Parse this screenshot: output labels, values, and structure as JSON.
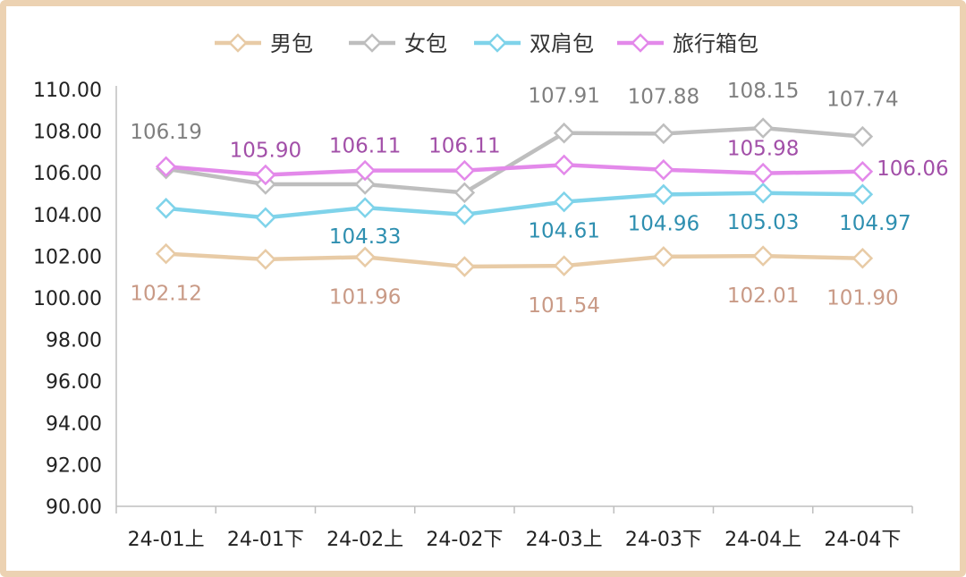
{
  "chart_data": {
    "type": "line",
    "title": "",
    "xlabel": "",
    "ylabel": "",
    "categories": [
      "24-01上",
      "24-01下",
      "24-02上",
      "24-02下",
      "24-03上",
      "24-03下",
      "24-04上",
      "24-04下"
    ],
    "ylim": [
      90,
      110
    ],
    "yticks": [
      "90.00",
      "92.00",
      "94.00",
      "96.00",
      "98.00",
      "100.00",
      "102.00",
      "104.00",
      "106.00",
      "108.00",
      "110.00"
    ],
    "legend_position": "top",
    "grid": false,
    "series": [
      {
        "name": "男包",
        "color": "#e8cba6",
        "label_color": "#c99a86",
        "values": [
          102.12,
          101.85,
          101.96,
          101.5,
          101.54,
          101.98,
          102.01,
          101.9
        ],
        "labels": [
          "102.12",
          "",
          "101.96",
          "",
          "101.54",
          "",
          "102.01",
          "101.90"
        ]
      },
      {
        "name": "女包",
        "color": "#bebebe",
        "label_color": "#7f7f7f",
        "values": [
          106.19,
          105.45,
          105.45,
          105.05,
          107.91,
          107.88,
          108.15,
          107.74
        ],
        "labels": [
          "106.19",
          "",
          "",
          "",
          "107.91",
          "107.88",
          "108.15",
          "107.74"
        ]
      },
      {
        "name": "双肩包",
        "color": "#7fd3ea",
        "label_color": "#2e8fb0",
        "values": [
          104.3,
          103.85,
          104.33,
          104.0,
          104.61,
          104.96,
          105.03,
          104.97
        ],
        "labels": [
          "",
          "",
          "104.33",
          "",
          "104.61",
          "104.96",
          "105.03",
          "104.97"
        ]
      },
      {
        "name": "旅行箱包",
        "color": "#e389ea",
        "label_color": "#a24fa8",
        "values": [
          106.3,
          105.9,
          106.11,
          106.11,
          106.38,
          106.15,
          105.98,
          106.06
        ],
        "labels": [
          "",
          "105.90",
          "106.11",
          "106.11",
          "",
          "",
          "105.98",
          "106.06"
        ]
      }
    ]
  }
}
